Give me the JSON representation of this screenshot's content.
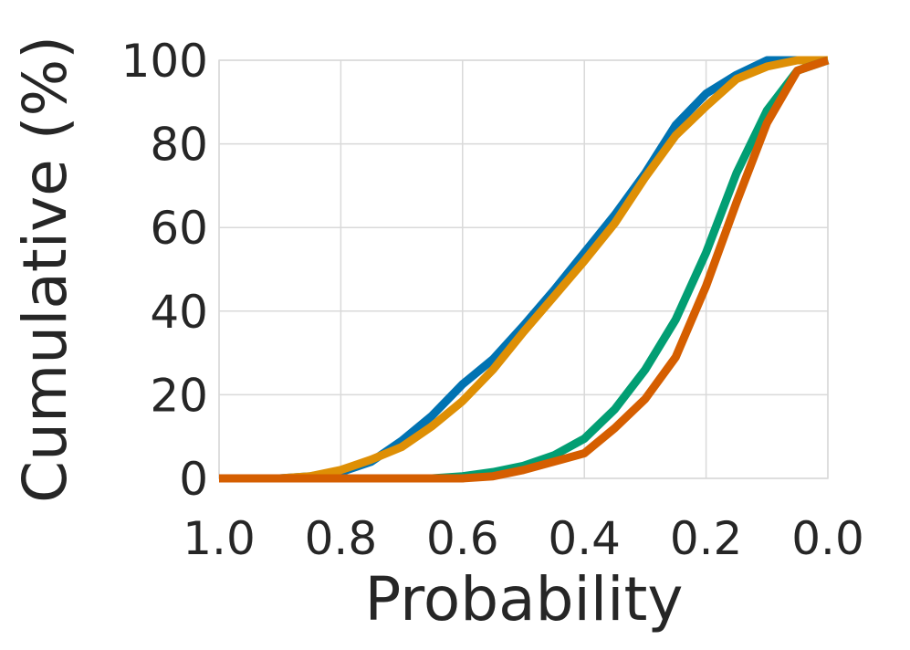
{
  "chart_data": {
    "type": "line",
    "title": "",
    "xlabel": "Probability",
    "ylabel": "Cumulative (%)",
    "xlim": [
      1.0,
      0.0
    ],
    "ylim": [
      0,
      100
    ],
    "x_reversed": true,
    "x_ticks": [
      1.0,
      0.8,
      0.6,
      0.4,
      0.2,
      0.0
    ],
    "x_tick_labels": [
      "1.0",
      "0.8",
      "0.6",
      "0.4",
      "0.2",
      "0.0"
    ],
    "y_ticks": [
      0,
      20,
      40,
      60,
      80,
      100
    ],
    "y_tick_labels": [
      "0",
      "20",
      "40",
      "60",
      "80",
      "100"
    ],
    "grid": true,
    "legend": "none",
    "series": [
      {
        "color": "#0173b2",
        "x": [
          1.0,
          0.95,
          0.9,
          0.85,
          0.8,
          0.75,
          0.7,
          0.65,
          0.6,
          0.55,
          0.5,
          0.45,
          0.4,
          0.35,
          0.3,
          0.25,
          0.2,
          0.15,
          0.1,
          0.05,
          0.0
        ],
        "y": [
          0,
          0,
          0,
          0.5,
          1.5,
          4,
          9,
          15,
          22.5,
          28.5,
          36.5,
          45,
          54,
          63,
          73,
          84.5,
          92,
          96.5,
          100,
          100,
          100
        ]
      },
      {
        "color": "#de8f05",
        "x": [
          1.0,
          0.95,
          0.9,
          0.85,
          0.8,
          0.75,
          0.7,
          0.65,
          0.6,
          0.55,
          0.5,
          0.45,
          0.4,
          0.35,
          0.3,
          0.25,
          0.2,
          0.15,
          0.1,
          0.05,
          0.0
        ],
        "y": [
          0,
          0,
          0,
          0.5,
          2,
          4.5,
          7.5,
          12.5,
          18.5,
          26,
          35,
          43.5,
          52,
          61,
          72,
          82,
          89,
          95.5,
          98.5,
          100,
          100
        ]
      },
      {
        "color": "#029e73",
        "x": [
          1.0,
          0.95,
          0.9,
          0.85,
          0.8,
          0.75,
          0.7,
          0.65,
          0.6,
          0.55,
          0.5,
          0.45,
          0.4,
          0.35,
          0.3,
          0.25,
          0.2,
          0.15,
          0.1,
          0.05,
          0.0
        ],
        "y": [
          0,
          0,
          0,
          0,
          0,
          0,
          0,
          0,
          0.5,
          1.5,
          3,
          5.5,
          9.5,
          16.5,
          26,
          38,
          54,
          73,
          88,
          97.5,
          100
        ]
      },
      {
        "color": "#d55e00",
        "x": [
          1.0,
          0.95,
          0.9,
          0.85,
          0.8,
          0.75,
          0.7,
          0.65,
          0.6,
          0.55,
          0.5,
          0.45,
          0.4,
          0.35,
          0.3,
          0.25,
          0.2,
          0.15,
          0.1,
          0.05,
          0.0
        ],
        "y": [
          0,
          0,
          0,
          0,
          0,
          0,
          0,
          0,
          0,
          0.5,
          2,
          4,
          6,
          12,
          19,
          29,
          46,
          66,
          85,
          97.5,
          100
        ]
      }
    ]
  }
}
